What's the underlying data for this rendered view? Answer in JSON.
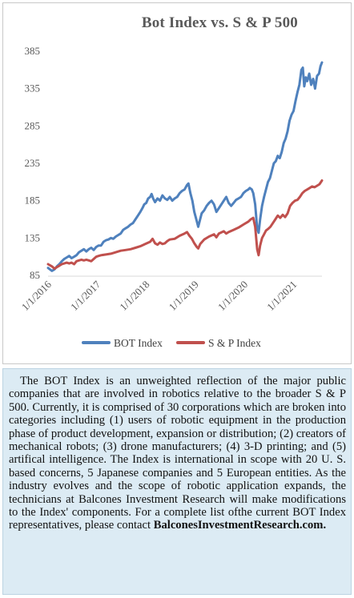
{
  "chart_data": {
    "type": "line",
    "title": "Bot Index vs. S & P 500",
    "xlabel": "",
    "ylabel": "",
    "ylim": [
      85,
      385
    ],
    "yticks": [
      85,
      135,
      185,
      235,
      285,
      335,
      385
    ],
    "xticks": [
      "1/1/2016",
      "1/1/2017",
      "1/1/2018",
      "1/1/2019",
      "1/1/2020",
      "1/1/2021"
    ],
    "x_range": [
      2015.92,
      2021.5
    ],
    "grid": false,
    "legend_position": "bottom",
    "series": [
      {
        "name": "BOT Index",
        "color": "#4f81bd",
        "points": [
          [
            2015.92,
            95
          ],
          [
            2016.0,
            91
          ],
          [
            2016.05,
            93
          ],
          [
            2016.1,
            97
          ],
          [
            2016.15,
            100
          ],
          [
            2016.2,
            104
          ],
          [
            2016.25,
            107
          ],
          [
            2016.3,
            109
          ],
          [
            2016.35,
            111
          ],
          [
            2016.4,
            108
          ],
          [
            2016.45,
            110
          ],
          [
            2016.5,
            112
          ],
          [
            2016.55,
            116
          ],
          [
            2016.6,
            118
          ],
          [
            2016.65,
            120
          ],
          [
            2016.7,
            117
          ],
          [
            2016.75,
            120
          ],
          [
            2016.8,
            122
          ],
          [
            2016.85,
            119
          ],
          [
            2016.9,
            123
          ],
          [
            2016.95,
            125
          ],
          [
            2017.0,
            125
          ],
          [
            2017.05,
            130
          ],
          [
            2017.1,
            132
          ],
          [
            2017.15,
            133
          ],
          [
            2017.2,
            135
          ],
          [
            2017.25,
            134
          ],
          [
            2017.3,
            137
          ],
          [
            2017.35,
            139
          ],
          [
            2017.4,
            141
          ],
          [
            2017.45,
            146
          ],
          [
            2017.5,
            148
          ],
          [
            2017.55,
            150
          ],
          [
            2017.6,
            153
          ],
          [
            2017.65,
            155
          ],
          [
            2017.7,
            160
          ],
          [
            2017.75,
            165
          ],
          [
            2017.8,
            170
          ],
          [
            2017.85,
            176
          ],
          [
            2017.88,
            180
          ],
          [
            2017.92,
            182
          ],
          [
            2017.96,
            188
          ],
          [
            2018.0,
            190
          ],
          [
            2018.03,
            194
          ],
          [
            2018.06,
            188
          ],
          [
            2018.1,
            183
          ],
          [
            2018.15,
            188
          ],
          [
            2018.2,
            185
          ],
          [
            2018.25,
            192
          ],
          [
            2018.3,
            188
          ],
          [
            2018.35,
            186
          ],
          [
            2018.4,
            190
          ],
          [
            2018.45,
            185
          ],
          [
            2018.5,
            188
          ],
          [
            2018.55,
            190
          ],
          [
            2018.6,
            195
          ],
          [
            2018.65,
            198
          ],
          [
            2018.7,
            200
          ],
          [
            2018.75,
            206
          ],
          [
            2018.78,
            208
          ],
          [
            2018.82,
            195
          ],
          [
            2018.86,
            185
          ],
          [
            2018.9,
            170
          ],
          [
            2018.94,
            160
          ],
          [
            2018.98,
            150
          ],
          [
            2019.01,
            158
          ],
          [
            2019.05,
            168
          ],
          [
            2019.1,
            172
          ],
          [
            2019.15,
            178
          ],
          [
            2019.2,
            182
          ],
          [
            2019.25,
            185
          ],
          [
            2019.3,
            180
          ],
          [
            2019.35,
            170
          ],
          [
            2019.4,
            175
          ],
          [
            2019.45,
            180
          ],
          [
            2019.5,
            185
          ],
          [
            2019.55,
            190
          ],
          [
            2019.6,
            182
          ],
          [
            2019.65,
            178
          ],
          [
            2019.7,
            182
          ],
          [
            2019.75,
            186
          ],
          [
            2019.8,
            188
          ],
          [
            2019.85,
            190
          ],
          [
            2019.9,
            195
          ],
          [
            2019.95,
            198
          ],
          [
            2020.0,
            200
          ],
          [
            2020.03,
            202
          ],
          [
            2020.07,
            200
          ],
          [
            2020.1,
            195
          ],
          [
            2020.14,
            180
          ],
          [
            2020.18,
            148
          ],
          [
            2020.21,
            142
          ],
          [
            2020.24,
            160
          ],
          [
            2020.28,
            178
          ],
          [
            2020.32,
            190
          ],
          [
            2020.36,
            200
          ],
          [
            2020.4,
            210
          ],
          [
            2020.44,
            215
          ],
          [
            2020.48,
            225
          ],
          [
            2020.52,
            235
          ],
          [
            2020.56,
            238
          ],
          [
            2020.6,
            245
          ],
          [
            2020.64,
            242
          ],
          [
            2020.68,
            250
          ],
          [
            2020.72,
            262
          ],
          [
            2020.76,
            268
          ],
          [
            2020.8,
            278
          ],
          [
            2020.84,
            292
          ],
          [
            2020.88,
            300
          ],
          [
            2020.92,
            305
          ],
          [
            2020.96,
            318
          ],
          [
            2021.0,
            330
          ],
          [
            2021.04,
            340
          ],
          [
            2021.08,
            360
          ],
          [
            2021.11,
            363
          ],
          [
            2021.14,
            338
          ],
          [
            2021.17,
            350
          ],
          [
            2021.2,
            345
          ],
          [
            2021.24,
            355
          ],
          [
            2021.28,
            340
          ],
          [
            2021.32,
            348
          ],
          [
            2021.36,
            335
          ],
          [
            2021.4,
            352
          ],
          [
            2021.44,
            355
          ],
          [
            2021.47,
            365
          ],
          [
            2021.5,
            370
          ]
        ]
      },
      {
        "name": "S & P Index",
        "color": "#c0504d",
        "points": [
          [
            2015.92,
            100
          ],
          [
            2016.0,
            97
          ],
          [
            2016.05,
            94
          ],
          [
            2016.1,
            96
          ],
          [
            2016.15,
            98
          ],
          [
            2016.2,
            100
          ],
          [
            2016.25,
            101
          ],
          [
            2016.3,
            102
          ],
          [
            2016.35,
            101
          ],
          [
            2016.4,
            102
          ],
          [
            2016.45,
            100
          ],
          [
            2016.5,
            104
          ],
          [
            2016.55,
            105
          ],
          [
            2016.6,
            106
          ],
          [
            2016.65,
            105
          ],
          [
            2016.7,
            106
          ],
          [
            2016.75,
            105
          ],
          [
            2016.8,
            104
          ],
          [
            2016.85,
            107
          ],
          [
            2016.9,
            110
          ],
          [
            2016.95,
            111
          ],
          [
            2017.0,
            112
          ],
          [
            2017.1,
            113
          ],
          [
            2017.2,
            114
          ],
          [
            2017.3,
            116
          ],
          [
            2017.4,
            118
          ],
          [
            2017.5,
            119
          ],
          [
            2017.6,
            120
          ],
          [
            2017.7,
            122
          ],
          [
            2017.8,
            124
          ],
          [
            2017.9,
            127
          ],
          [
            2018.0,
            130
          ],
          [
            2018.05,
            134
          ],
          [
            2018.1,
            128
          ],
          [
            2018.15,
            126
          ],
          [
            2018.2,
            129
          ],
          [
            2018.25,
            127
          ],
          [
            2018.3,
            128
          ],
          [
            2018.35,
            131
          ],
          [
            2018.4,
            133
          ],
          [
            2018.5,
            134
          ],
          [
            2018.6,
            138
          ],
          [
            2018.7,
            141
          ],
          [
            2018.75,
            143
          ],
          [
            2018.8,
            138
          ],
          [
            2018.85,
            134
          ],
          [
            2018.9,
            128
          ],
          [
            2018.95,
            123
          ],
          [
            2018.98,
            121
          ],
          [
            2019.02,
            127
          ],
          [
            2019.1,
            133
          ],
          [
            2019.2,
            137
          ],
          [
            2019.3,
            140
          ],
          [
            2019.35,
            136
          ],
          [
            2019.4,
            141
          ],
          [
            2019.5,
            144
          ],
          [
            2019.55,
            141
          ],
          [
            2019.6,
            143
          ],
          [
            2019.7,
            146
          ],
          [
            2019.8,
            149
          ],
          [
            2019.9,
            153
          ],
          [
            2020.0,
            157
          ],
          [
            2020.05,
            160
          ],
          [
            2020.1,
            162
          ],
          [
            2020.14,
            150
          ],
          [
            2020.18,
            120
          ],
          [
            2020.21,
            112
          ],
          [
            2020.24,
            125
          ],
          [
            2020.28,
            135
          ],
          [
            2020.32,
            140
          ],
          [
            2020.36,
            145
          ],
          [
            2020.4,
            147
          ],
          [
            2020.45,
            150
          ],
          [
            2020.5,
            155
          ],
          [
            2020.55,
            160
          ],
          [
            2020.6,
            165
          ],
          [
            2020.65,
            162
          ],
          [
            2020.7,
            166
          ],
          [
            2020.75,
            163
          ],
          [
            2020.8,
            168
          ],
          [
            2020.85,
            178
          ],
          [
            2020.9,
            182
          ],
          [
            2020.95,
            185
          ],
          [
            2021.0,
            186
          ],
          [
            2021.05,
            190
          ],
          [
            2021.1,
            195
          ],
          [
            2021.15,
            198
          ],
          [
            2021.2,
            200
          ],
          [
            2021.25,
            202
          ],
          [
            2021.3,
            204
          ],
          [
            2021.35,
            203
          ],
          [
            2021.4,
            205
          ],
          [
            2021.45,
            207
          ],
          [
            2021.5,
            212
          ]
        ]
      }
    ]
  },
  "description": {
    "main": "The BOT Index is an unweighted reflection of the major public companies that are involved in robotics relative to the broader S & P 500. Currently, it is comprised of 30 corporations which are broken into categories including (1) users of robotic equipment in the production phase of product development, expansion or distribution; (2) creators of mechanical robots; (3) drone manufacturers; (4) 3-D printing; and (5) artifical intelligence. The Index is international in scope with 20 U. S. based concerns, 5 Japanese companies and 5 European entities. As the industry evolves and the scope of robotic application expands, the technicians at Balcones Investment Research will make modifications to the Index' components. For a complete list ofthe current BOT Index representatives, please contact",
    "contact": "BalconesInvestmentResearch.com."
  }
}
